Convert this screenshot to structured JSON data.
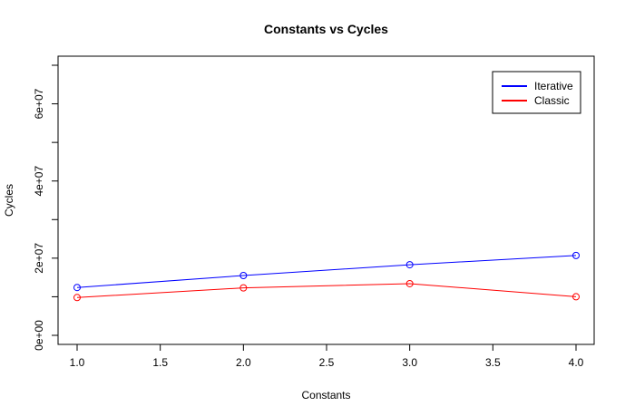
{
  "chart_data": {
    "type": "line",
    "title": "Constants vs Cycles",
    "xlabel": "Constants",
    "ylabel": "Cycles",
    "x": [
      1,
      2,
      3,
      4
    ],
    "xlim": [
      1,
      4
    ],
    "ylim": [
      0,
      70000000
    ],
    "x_ticks": [
      1.0,
      1.5,
      2.0,
      2.5,
      3.0,
      3.5,
      4.0
    ],
    "x_tick_labels": [
      "1.0",
      "1.5",
      "2.0",
      "2.5",
      "3.0",
      "3.5",
      "4.0"
    ],
    "y_ticks": [
      0,
      10000000,
      20000000,
      30000000,
      40000000,
      50000000,
      60000000,
      70000000
    ],
    "y_tick_labels": [
      "0e+00",
      "",
      "2e+07",
      "",
      "4e+07",
      "",
      "6e+07",
      ""
    ],
    "grid": false,
    "legend_position": "top-right",
    "markers": "open-circle",
    "series": [
      {
        "name": "Iterative",
        "color": "#0000ff",
        "values": [
          12400000,
          15500000,
          18300000,
          20700000
        ]
      },
      {
        "name": "Classic",
        "color": "#ff0000",
        "values": [
          9800000,
          12300000,
          13400000,
          10000000
        ]
      }
    ]
  }
}
